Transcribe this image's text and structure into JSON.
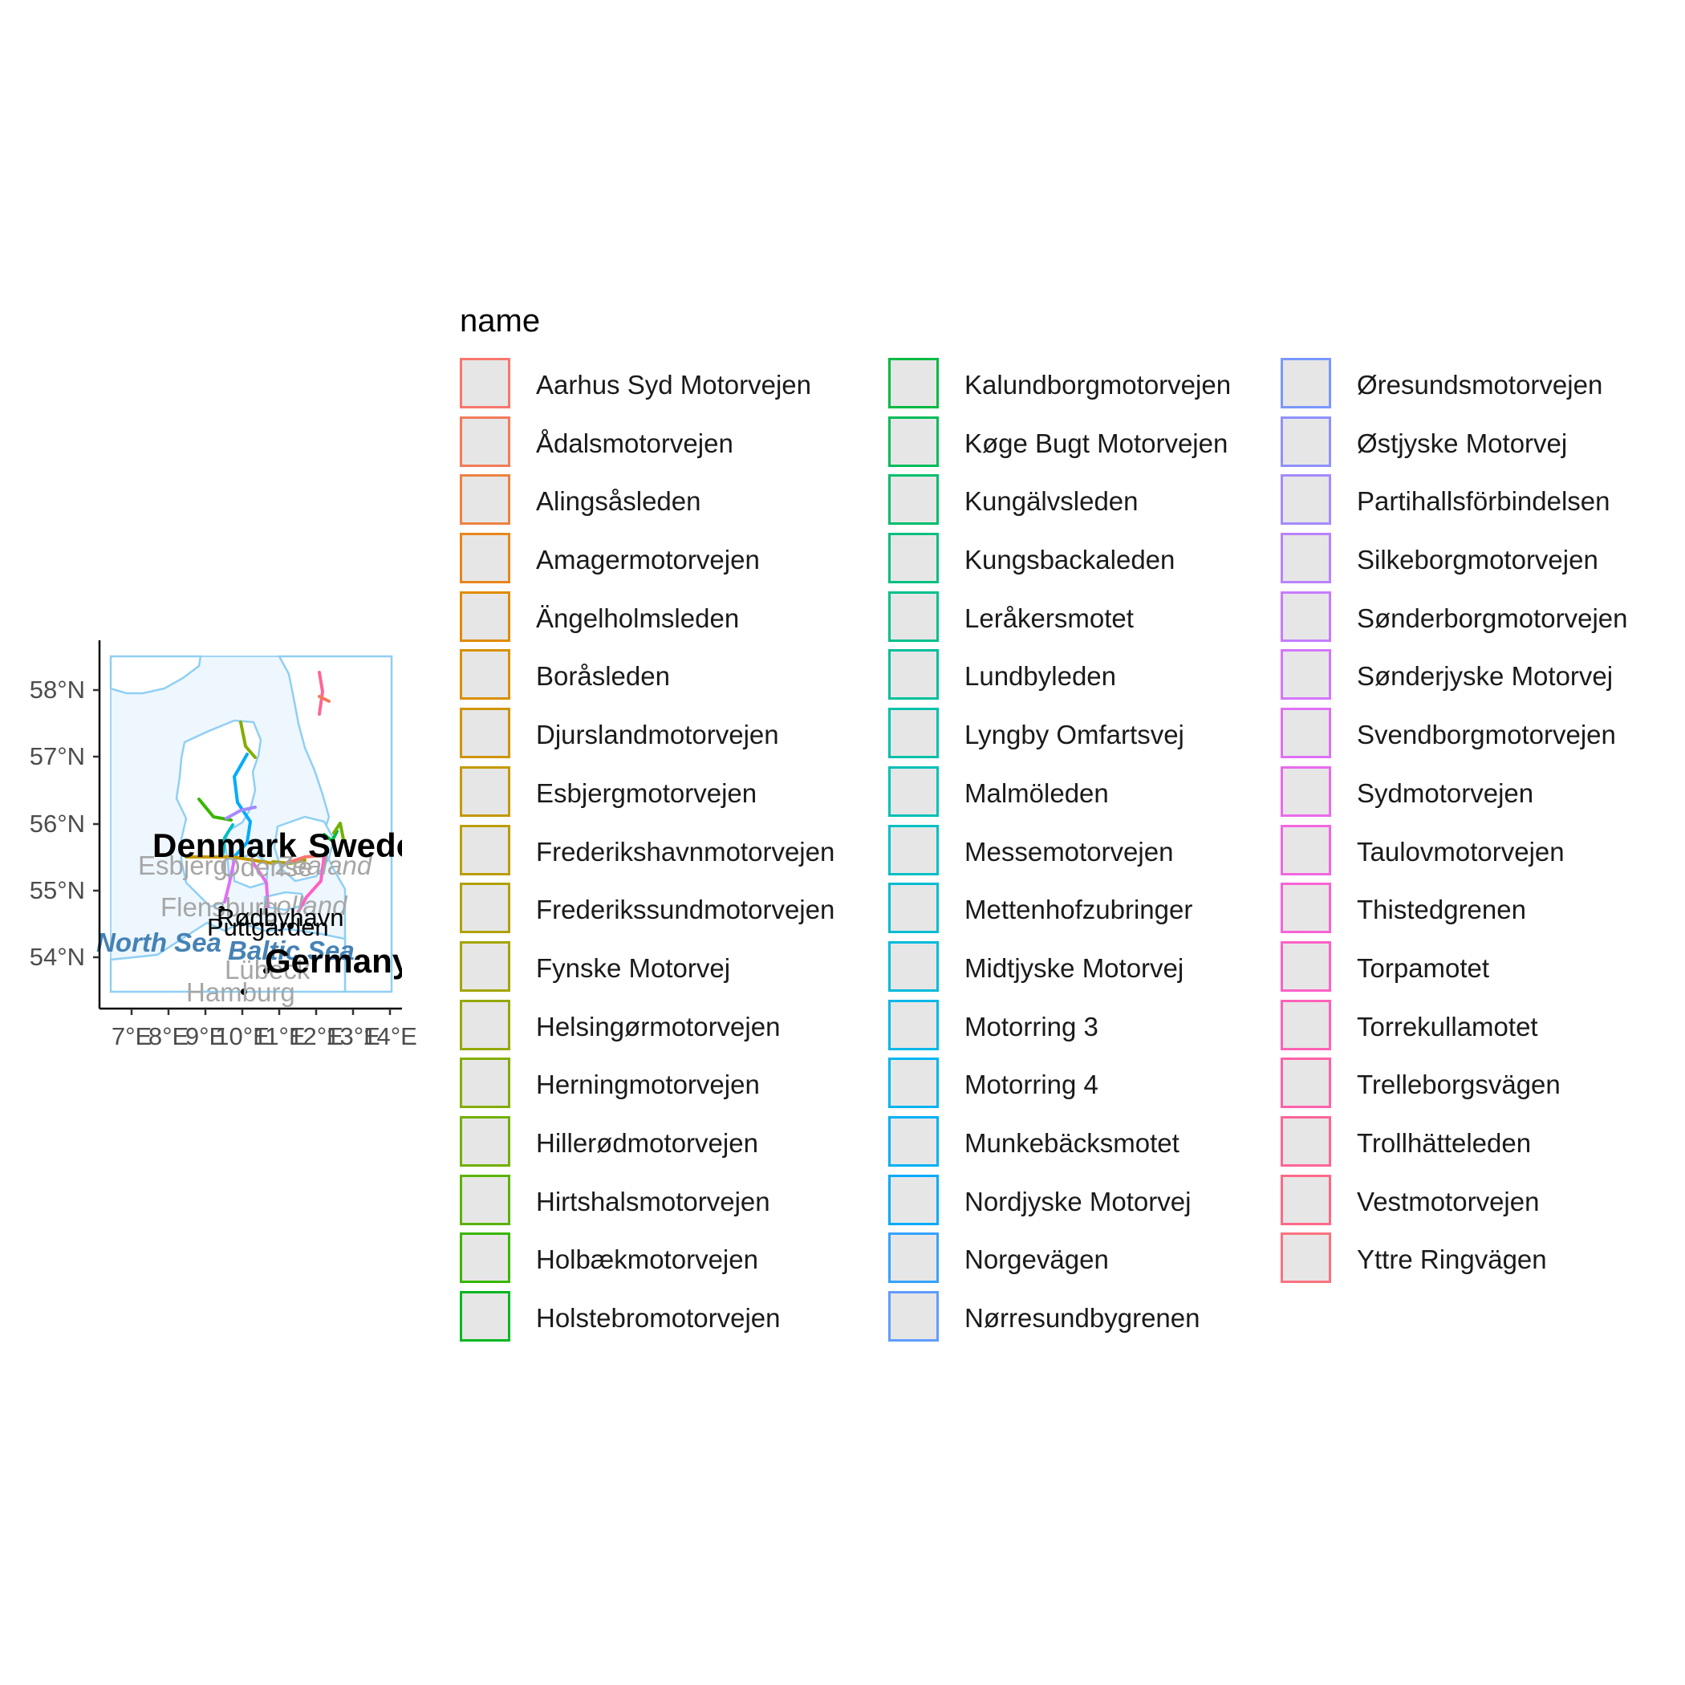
{
  "map": {
    "axes": {
      "y_ticks": [
        "58°N",
        "57°N",
        "56°N",
        "55°N",
        "54°N"
      ],
      "x_ticks": [
        "7°E",
        "8°E",
        "9°E",
        "10°E",
        "11°E",
        "12°E",
        "13°E",
        "14°E"
      ]
    },
    "country_labels": [
      "Denmark",
      "Sweden",
      "Germany"
    ],
    "sea_labels": [
      "North Sea",
      "Baltic Sea"
    ],
    "region_labels": [
      "Zealand",
      "Lolland"
    ],
    "city_labels_gray": [
      "Esbjerg",
      "Odense",
      "Flensburg",
      "Lübeck",
      "Hamburg"
    ],
    "city_labels_black": [
      "Rødbyhavn",
      "Puttgarden"
    ]
  },
  "legend": {
    "title": "name",
    "items": [
      {
        "label": "Aarhus Syd Motorvejen",
        "color": "#F8766D"
      },
      {
        "label": "Ådalsmotorvejen",
        "color": "#F37B59"
      },
      {
        "label": "Alingsåsleden",
        "color": "#ED8141"
      },
      {
        "label": "Amagermotorvejen",
        "color": "#E7861B"
      },
      {
        "label": "Ängelholmsleden",
        "color": "#E08B00"
      },
      {
        "label": "Boråsleden",
        "color": "#D89000"
      },
      {
        "label": "Djurslandmotorvejen",
        "color": "#CF9400"
      },
      {
        "label": "Esbjergmotorvejen",
        "color": "#C59900"
      },
      {
        "label": "Frederikshavnmotorvejen",
        "color": "#BB9D00"
      },
      {
        "label": "Frederikssundmotorvejen",
        "color": "#B0A100"
      },
      {
        "label": "Fynske Motorvej",
        "color": "#A3A500"
      },
      {
        "label": "Helsingørmotorvejen",
        "color": "#95A900"
      },
      {
        "label": "Herningmotorvejen",
        "color": "#85AD00"
      },
      {
        "label": "Hillerødmotorvejen",
        "color": "#72B000"
      },
      {
        "label": "Hirtshalsmotorvejen",
        "color": "#5BB300"
      },
      {
        "label": "Holbækmotorvejen",
        "color": "#39B600"
      },
      {
        "label": "Holstebromotorvejen",
        "color": "#00B81F"
      },
      {
        "label": "Kalundborgmotorvejen",
        "color": "#00BA42"
      },
      {
        "label": "Køge Bugt Motorvejen",
        "color": "#00BC59"
      },
      {
        "label": "Kungälvsleden",
        "color": "#00BD6D"
      },
      {
        "label": "Kungsbackaleden",
        "color": "#00BF7D"
      },
      {
        "label": "Leråkersmotet",
        "color": "#00C08D"
      },
      {
        "label": "Lundbyleden",
        "color": "#00C09C"
      },
      {
        "label": "Lyngby Omfartsvej",
        "color": "#00C1AA"
      },
      {
        "label": "Malmöleden",
        "color": "#00C0B8"
      },
      {
        "label": "Messemotorvejen",
        "color": "#00BFC4"
      },
      {
        "label": "Mettenhofzubringer",
        "color": "#00BDD0"
      },
      {
        "label": "Midtjyske Motorvej",
        "color": "#00BBDC"
      },
      {
        "label": "Motorring 3",
        "color": "#00B8E7"
      },
      {
        "label": "Motorring 4",
        "color": "#00B4F0"
      },
      {
        "label": "Munkebäcksmotet",
        "color": "#00B0F6"
      },
      {
        "label": "Nordjyske Motorvej",
        "color": "#00ABFD"
      },
      {
        "label": "Norgevägen",
        "color": "#35A2FF"
      },
      {
        "label": "Nørresundbygrenen",
        "color": "#619CFF"
      },
      {
        "label": "Øresundsmotorvejen",
        "color": "#7997FF"
      },
      {
        "label": "Østjyske Motorvej",
        "color": "#8F91FF"
      },
      {
        "label": "Partihallsförbindelsen",
        "color": "#A58AFF"
      },
      {
        "label": "Silkeborgmotorvejen",
        "color": "#B983FF"
      },
      {
        "label": "Sønderborgmotorvejen",
        "color": "#C77CFF"
      },
      {
        "label": "Sønderjyske Motorvej",
        "color": "#D376FF"
      },
      {
        "label": "Svendborgmotorvejen",
        "color": "#E070F5"
      },
      {
        "label": "Sydmotorvejen",
        "color": "#E96AEB"
      },
      {
        "label": "Taulovmotorvejen",
        "color": "#F266E0"
      },
      {
        "label": "Thistedgrenen",
        "color": "#F863D4"
      },
      {
        "label": "Torpamotet",
        "color": "#FD61C6"
      },
      {
        "label": "Torrekullamotet",
        "color": "#FF61B8"
      },
      {
        "label": "Trelleborgsvägen",
        "color": "#FF62A9"
      },
      {
        "label": "Trollhätteleden",
        "color": "#FF6598"
      },
      {
        "label": "Vestmotorvejen",
        "color": "#FF6986"
      },
      {
        "label": "Yttre Ringvägen",
        "color": "#FC717F"
      }
    ]
  }
}
